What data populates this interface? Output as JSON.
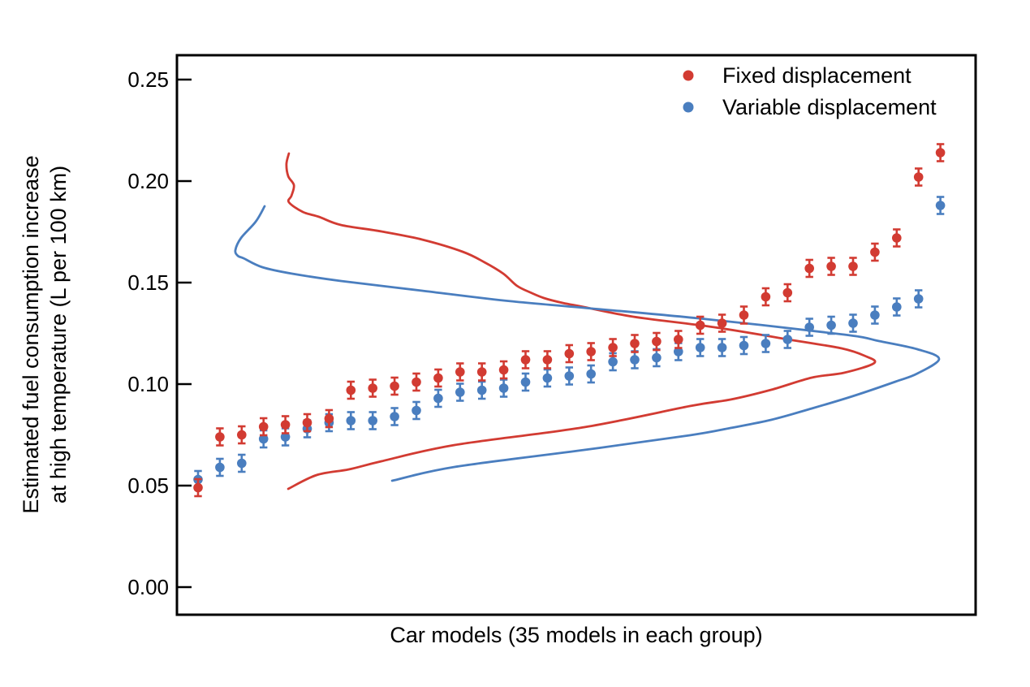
{
  "figure": {
    "background": "#ffffff",
    "axis_color": "#000000"
  },
  "chart_data": {
    "type": "scatter",
    "title": "",
    "xlabel": "Car models (35 models in each group)",
    "ylabel_line1": "Estimated fuel consumption increase",
    "ylabel_line2": "at high temperature (L per 100 km)",
    "ylim": [
      -0.0136,
      0.262
    ],
    "yticks": [
      0.0,
      0.05,
      0.1,
      0.15,
      0.2,
      0.25
    ],
    "ytick_labels": [
      "0.00",
      "0.05",
      "0.10",
      "0.15",
      "0.20",
      "0.25"
    ],
    "xticks": [],
    "grid": false,
    "legend_position": "top-right-inside",
    "models_per_group": 35,
    "error_bar_halfwidth": 0.0042,
    "series": [
      {
        "name": "Fixed displacement",
        "color": "#d23b32",
        "values": [
          0.049,
          0.074,
          0.075,
          0.079,
          0.08,
          0.081,
          0.083,
          0.097,
          0.098,
          0.099,
          0.101,
          0.103,
          0.106,
          0.106,
          0.107,
          0.112,
          0.112,
          0.115,
          0.116,
          0.118,
          0.12,
          0.121,
          0.122,
          0.129,
          0.13,
          0.134,
          0.143,
          0.145,
          0.157,
          0.158,
          0.158,
          0.165,
          0.172,
          0.202,
          0.214
        ]
      },
      {
        "name": "Variable displacement",
        "color": "#4a7ebf",
        "values": [
          0.053,
          0.059,
          0.061,
          0.073,
          0.074,
          0.078,
          0.081,
          0.082,
          0.082,
          0.084,
          0.087,
          0.093,
          0.096,
          0.097,
          0.098,
          0.101,
          0.103,
          0.104,
          0.105,
          0.111,
          0.112,
          0.113,
          0.116,
          0.118,
          0.118,
          0.119,
          0.12,
          0.122,
          0.128,
          0.129,
          0.13,
          0.134,
          0.138,
          0.142,
          0.188
        ]
      }
    ],
    "density_curves": [
      {
        "series": "Fixed displacement",
        "color": "#d23b32",
        "points": [
          [
            5.16,
            0.2136
          ],
          [
            5.05,
            0.2084
          ],
          [
            5.13,
            0.2024
          ],
          [
            5.39,
            0.198
          ],
          [
            5.28,
            0.1928
          ],
          [
            5.16,
            0.1896
          ],
          [
            5.8,
            0.1848
          ],
          [
            6.54,
            0.1824
          ],
          [
            7.54,
            0.1784
          ],
          [
            9.4,
            0.1752
          ],
          [
            11.26,
            0.1712
          ],
          [
            13.12,
            0.1652
          ],
          [
            14.12,
            0.16
          ],
          [
            14.98,
            0.1544
          ],
          [
            15.61,
            0.1484
          ],
          [
            16.21,
            0.1452
          ],
          [
            16.84,
            0.1424
          ],
          [
            17.7,
            0.14
          ],
          [
            18.66,
            0.138
          ],
          [
            20.93,
            0.1332
          ],
          [
            24.65,
            0.128
          ],
          [
            28.48,
            0.1212
          ],
          [
            30.48,
            0.1176
          ],
          [
            31.52,
            0.114
          ],
          [
            31.97,
            0.1104
          ],
          [
            30.59,
            0.1056
          ],
          [
            29.11,
            0.1032
          ],
          [
            27.25,
            0.0972
          ],
          [
            25.39,
            0.0924
          ],
          [
            23.53,
            0.0892
          ],
          [
            18.7,
            0.0788
          ],
          [
            12.75,
            0.07
          ],
          [
            9.4,
            0.062
          ],
          [
            7.91,
            0.058
          ],
          [
            6.43,
            0.0552
          ],
          [
            5.13,
            0.0484
          ]
        ]
      },
      {
        "series": "Variable displacement",
        "color": "#4a7ebf",
        "points": [
          [
            4.05,
            0.1876
          ],
          [
            3.64,
            0.18
          ],
          [
            2.97,
            0.172
          ],
          [
            2.71,
            0.166
          ],
          [
            2.82,
            0.1632
          ],
          [
            3.08,
            0.162
          ],
          [
            3.94,
            0.1576
          ],
          [
            5.31,
            0.1544
          ],
          [
            7.54,
            0.1508
          ],
          [
            11.26,
            0.146
          ],
          [
            14.98,
            0.1412
          ],
          [
            18.66,
            0.1376
          ],
          [
            24.28,
            0.132
          ],
          [
            30.59,
            0.1244
          ],
          [
            32.19,
            0.1212
          ],
          [
            33.94,
            0.1172
          ],
          [
            34.94,
            0.1124
          ],
          [
            33.94,
            0.1052
          ],
          [
            32.94,
            0.1012
          ],
          [
            30.97,
            0.094
          ],
          [
            29.11,
            0.088
          ],
          [
            27.25,
            0.0824
          ],
          [
            25.39,
            0.0784
          ],
          [
            23.53,
            0.0748
          ],
          [
            18.7,
            0.0676
          ],
          [
            12.75,
            0.0592
          ],
          [
            9.89,
            0.0524
          ]
        ]
      }
    ]
  }
}
